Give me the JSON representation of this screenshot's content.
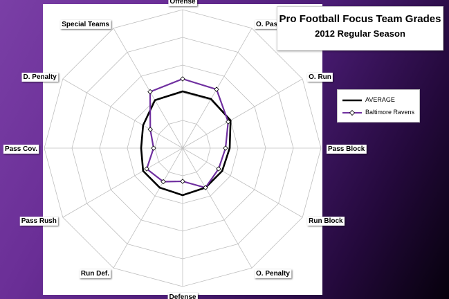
{
  "colors": {
    "average_line": "#000000",
    "ravens_line": "#7030a0",
    "grid": "#bfbfbf",
    "background_start": "#7a3fa6",
    "background_end": "#06010c"
  },
  "chart_data": {
    "type": "radar",
    "title": "Pro Football Focus Team Grades",
    "subtitle": "2012 Regular Season",
    "categories": [
      "Offense",
      "O. Pass",
      "O. Run",
      "Pass Block",
      "Run Block",
      "O. Penalty",
      "Defense",
      "Run Def.",
      "Pass Rush",
      "Pass Cov.",
      "D. Penalty",
      "Special Teams"
    ],
    "rings": 5,
    "series": [
      {
        "name": "AVERAGE",
        "color": "#000000",
        "values": [
          0.41,
          0.41,
          0.4,
          0.34,
          0.33,
          0.33,
          0.34,
          0.33,
          0.33,
          0.3,
          0.33,
          0.4
        ]
      },
      {
        "name": "Baltimore Ravens",
        "color": "#7030a0",
        "values": [
          0.5,
          0.49,
          0.38,
          0.31,
          0.3,
          0.33,
          0.24,
          0.28,
          0.3,
          0.21,
          0.27,
          0.47
        ]
      }
    ],
    "legend": "right",
    "grid": true
  }
}
